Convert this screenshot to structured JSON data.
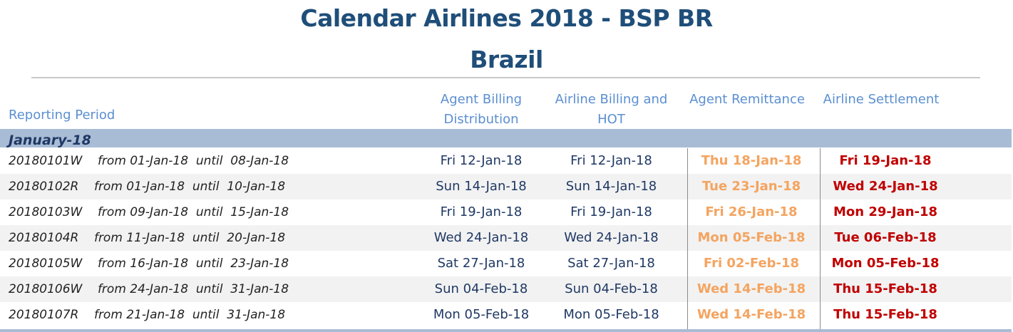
{
  "header": {
    "title": "Calendar Airlines 2018  - BSP BR",
    "subtitle": "Brazil"
  },
  "columns": {
    "reporting_period": "Reporting Period",
    "agent_billing": [
      "Agent Billing",
      "Distribution"
    ],
    "airline_billing": [
      "Airline Billing and",
      "HOT"
    ],
    "agent_remittance": "Agent Remittance",
    "airline_settlement": "Airline Settlement"
  },
  "month": {
    "label": "January-18"
  },
  "colors": {
    "title": "#1f4e79",
    "column_header": "#5b8fd1",
    "month_band": "#a9bcd6",
    "agent_remittance": "#f4a460",
    "airline_settlement": "#c00000"
  },
  "rows": [
    {
      "period": "20180101W    from 01-Jan-18  until  08-Jan-18",
      "agent_billing": "Fri 12-Jan-18",
      "airline_billing": "Fri 12-Jan-18",
      "agent_remittance": "Thu 18-Jan-18",
      "airline_settlement": "Fri 19-Jan-18"
    },
    {
      "period": "20180102R    from 01-Jan-18  until  10-Jan-18",
      "agent_billing": "Sun 14-Jan-18",
      "airline_billing": "Sun 14-Jan-18",
      "agent_remittance": "Tue 23-Jan-18",
      "airline_settlement": "Wed 24-Jan-18"
    },
    {
      "period": "20180103W    from 09-Jan-18  until  15-Jan-18",
      "agent_billing": "Fri 19-Jan-18",
      "airline_billing": "Fri 19-Jan-18",
      "agent_remittance": "Fri 26-Jan-18",
      "airline_settlement": "Mon 29-Jan-18"
    },
    {
      "period": "20180104R    from 11-Jan-18  until  20-Jan-18",
      "agent_billing": "Wed 24-Jan-18",
      "airline_billing": "Wed 24-Jan-18",
      "agent_remittance": "Mon 05-Feb-18",
      "airline_settlement": "Tue 06-Feb-18"
    },
    {
      "period": "20180105W    from 16-Jan-18  until  23-Jan-18",
      "agent_billing": "Sat 27-Jan-18",
      "airline_billing": "Sat 27-Jan-18",
      "agent_remittance": "Fri 02-Feb-18",
      "airline_settlement": "Mon 05-Feb-18"
    },
    {
      "period": "20180106W    from 24-Jan-18  until  31-Jan-18",
      "agent_billing": "Sun 04-Feb-18",
      "airline_billing": "Sun 04-Feb-18",
      "agent_remittance": "Wed 14-Feb-18",
      "airline_settlement": "Thu 15-Feb-18"
    },
    {
      "period": "20180107R    from 21-Jan-18  until  31-Jan-18",
      "agent_billing": "Mon 05-Feb-18",
      "airline_billing": "Mon 05-Feb-18",
      "agent_remittance": "Wed 14-Feb-18",
      "airline_settlement": "Thu 15-Feb-18"
    }
  ]
}
